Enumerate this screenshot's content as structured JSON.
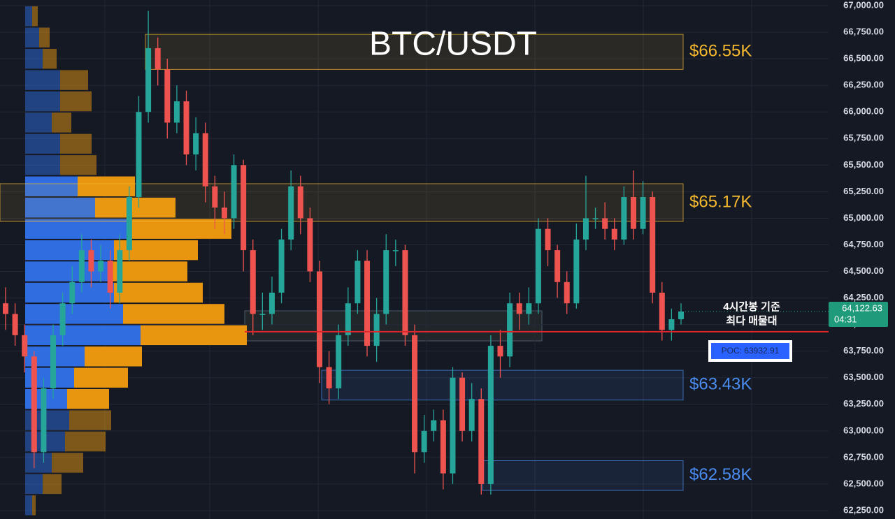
{
  "chart_data": {
    "type": "candlestick",
    "title": "BTC/USDT",
    "ylim": [
      62171,
      67053
    ],
    "yticks": [
      {
        "value": 62250,
        "label": "62,250.00"
      },
      {
        "value": 62500,
        "label": "62,500.00"
      },
      {
        "value": 62750,
        "label": "62,750.00"
      },
      {
        "value": 63000,
        "label": "63,000.00"
      },
      {
        "value": 63250,
        "label": "63,250.00"
      },
      {
        "value": 63500,
        "label": "63,500.00"
      },
      {
        "value": 63750,
        "label": "63,750.00"
      },
      {
        "value": 64000,
        "label": "64,000.00"
      },
      {
        "value": 64250,
        "label": "64,250.00"
      },
      {
        "value": 64500,
        "label": "64,500.00"
      },
      {
        "value": 64750,
        "label": "64,750.00"
      },
      {
        "value": 65000,
        "label": "65,000.00"
      },
      {
        "value": 65250,
        "label": "65,250.00"
      },
      {
        "value": 65500,
        "label": "65,500.00"
      },
      {
        "value": 65750,
        "label": "65,750.00"
      },
      {
        "value": 66000,
        "label": "66,000.00"
      },
      {
        "value": 66250,
        "label": "66,250.00"
      },
      {
        "value": 66500,
        "label": "66,500.00"
      },
      {
        "value": 66750,
        "label": "66,750.00"
      },
      {
        "value": 67000,
        "label": "67,000.00"
      }
    ],
    "grid": true,
    "up_color": "#26a69a",
    "down_color": "#ef5350",
    "candles": {
      "open": [
        64200,
        64100,
        63900,
        63700,
        62800,
        63400,
        63900,
        64200,
        64400,
        64700,
        64500,
        64600,
        64300,
        64700,
        65200,
        66000,
        66600,
        66400,
        65900,
        66100,
        65600,
        65800,
        65300,
        65100,
        65000,
        65500,
        64700,
        64100,
        64100,
        64300,
        64800,
        65300,
        65000,
        64500,
        63600,
        63400,
        63900,
        64200,
        64600,
        63800,
        64100,
        64700,
        64700,
        63900,
        62800,
        63000,
        63100,
        62600,
        63500,
        63000,
        63300,
        62500,
        63800,
        63700,
        64200,
        64100,
        64200,
        64900,
        64700,
        64400,
        64200,
        64800,
        65000,
        65000,
        64900,
        64800,
        65200,
        64900,
        65200,
        64300,
        63950,
        64050
      ],
      "high": [
        64350,
        64200,
        64000,
        63750,
        63500,
        64000,
        64300,
        64550,
        64850,
        64800,
        64750,
        64700,
        64850,
        65300,
        66150,
        66950,
        66700,
        66500,
        66250,
        66200,
        65950,
        65900,
        65400,
        65250,
        65600,
        65550,
        64800,
        64300,
        64450,
        64900,
        65450,
        65400,
        65100,
        64600,
        63750,
        64000,
        64350,
        64700,
        64700,
        64250,
        64850,
        64800,
        64750,
        64000,
        63150,
        63200,
        63200,
        63600,
        63550,
        63450,
        63400,
        63900,
        63950,
        64300,
        64300,
        64350,
        65000,
        65000,
        64750,
        64500,
        64950,
        65400,
        65100,
        65150,
        65000,
        65300,
        65450,
        65350,
        65250,
        64400,
        64150,
        64200
      ],
      "low": [
        63950,
        63800,
        63550,
        62650,
        62700,
        63300,
        63800,
        64100,
        64300,
        64350,
        64400,
        64150,
        64200,
        64600,
        65100,
        65900,
        66250,
        65750,
        65800,
        65500,
        65450,
        65150,
        64900,
        64850,
        64900,
        64500,
        63900,
        63950,
        64000,
        64200,
        64700,
        64850,
        64400,
        63450,
        63250,
        63300,
        63800,
        64100,
        63700,
        63650,
        64000,
        64550,
        63800,
        62600,
        62700,
        62900,
        62450,
        62500,
        62900,
        62900,
        62400,
        62400,
        63500,
        63600,
        63950,
        64000,
        64100,
        64550,
        64250,
        64100,
        64150,
        64700,
        64900,
        64800,
        64700,
        64750,
        64800,
        64850,
        64200,
        63850,
        63850,
        64000
      ],
      "close": [
        64100,
        63900,
        63700,
        62800,
        63400,
        63900,
        64200,
        64400,
        64700,
        64500,
        64600,
        64300,
        64700,
        65200,
        66000,
        66600,
        66400,
        65900,
        66100,
        65600,
        65800,
        65300,
        65100,
        65000,
        65500,
        64700,
        64100,
        64100,
        64300,
        64800,
        65300,
        65000,
        64500,
        63600,
        63400,
        63900,
        64200,
        64600,
        63800,
        64100,
        64700,
        64700,
        63900,
        62800,
        63000,
        63100,
        62600,
        63500,
        63000,
        63300,
        62500,
        63800,
        63700,
        64200,
        64100,
        64200,
        64900,
        64700,
        64400,
        64200,
        64800,
        65000,
        65000,
        64900,
        64800,
        65200,
        64900,
        65200,
        64300,
        63950,
        64050,
        64123
      ]
    },
    "volume_profile": {
      "bins": [
        67000,
        66800,
        66600,
        66400,
        66200,
        66000,
        65800,
        65600,
        65400,
        65200,
        65000,
        64800,
        64600,
        64400,
        64200,
        64000,
        63800,
        63600,
        63400,
        63200,
        63000,
        62800,
        62600,
        62400,
        62200
      ],
      "buy": [
        10,
        20,
        25,
        50,
        50,
        38,
        50,
        50,
        75,
        100,
        145,
        127,
        122,
        127,
        140,
        165,
        85,
        70,
        60,
        63,
        57,
        38,
        25,
        10
      ],
      "sell": [
        8,
        15,
        20,
        40,
        45,
        28,
        45,
        52,
        82,
        115,
        150,
        120,
        110,
        127,
        145,
        152,
        82,
        77,
        60,
        60,
        58,
        45,
        27,
        5
      ],
      "buy_color": "#2f6de0",
      "sell_color": "#e8950f",
      "value_area": [
        63200,
        65400
      ]
    },
    "zones": [
      {
        "label": "$66.55K",
        "low": 66400,
        "high": 66730,
        "color": "#f5b82e"
      },
      {
        "label": "$65.17K",
        "low": 64970,
        "high": 65325,
        "color": "#f5b82e"
      },
      {
        "label": "$63.43K",
        "low": 63290,
        "high": 63570,
        "color": "#4a8cf0"
      },
      {
        "label": "$62.58K",
        "low": 62440,
        "high": 62720,
        "color": "#4a8cf0"
      }
    ],
    "last_price": {
      "value": 64122.63,
      "label": "64,122.63",
      "countdown": "04:31",
      "color": "#1f9a7a"
    },
    "poc": {
      "value": 63932.91,
      "label": "POC: 63932.91",
      "color": "#e0262b"
    },
    "annotation": [
      "4시간봉 기준",
      "최다 매물대"
    ]
  }
}
